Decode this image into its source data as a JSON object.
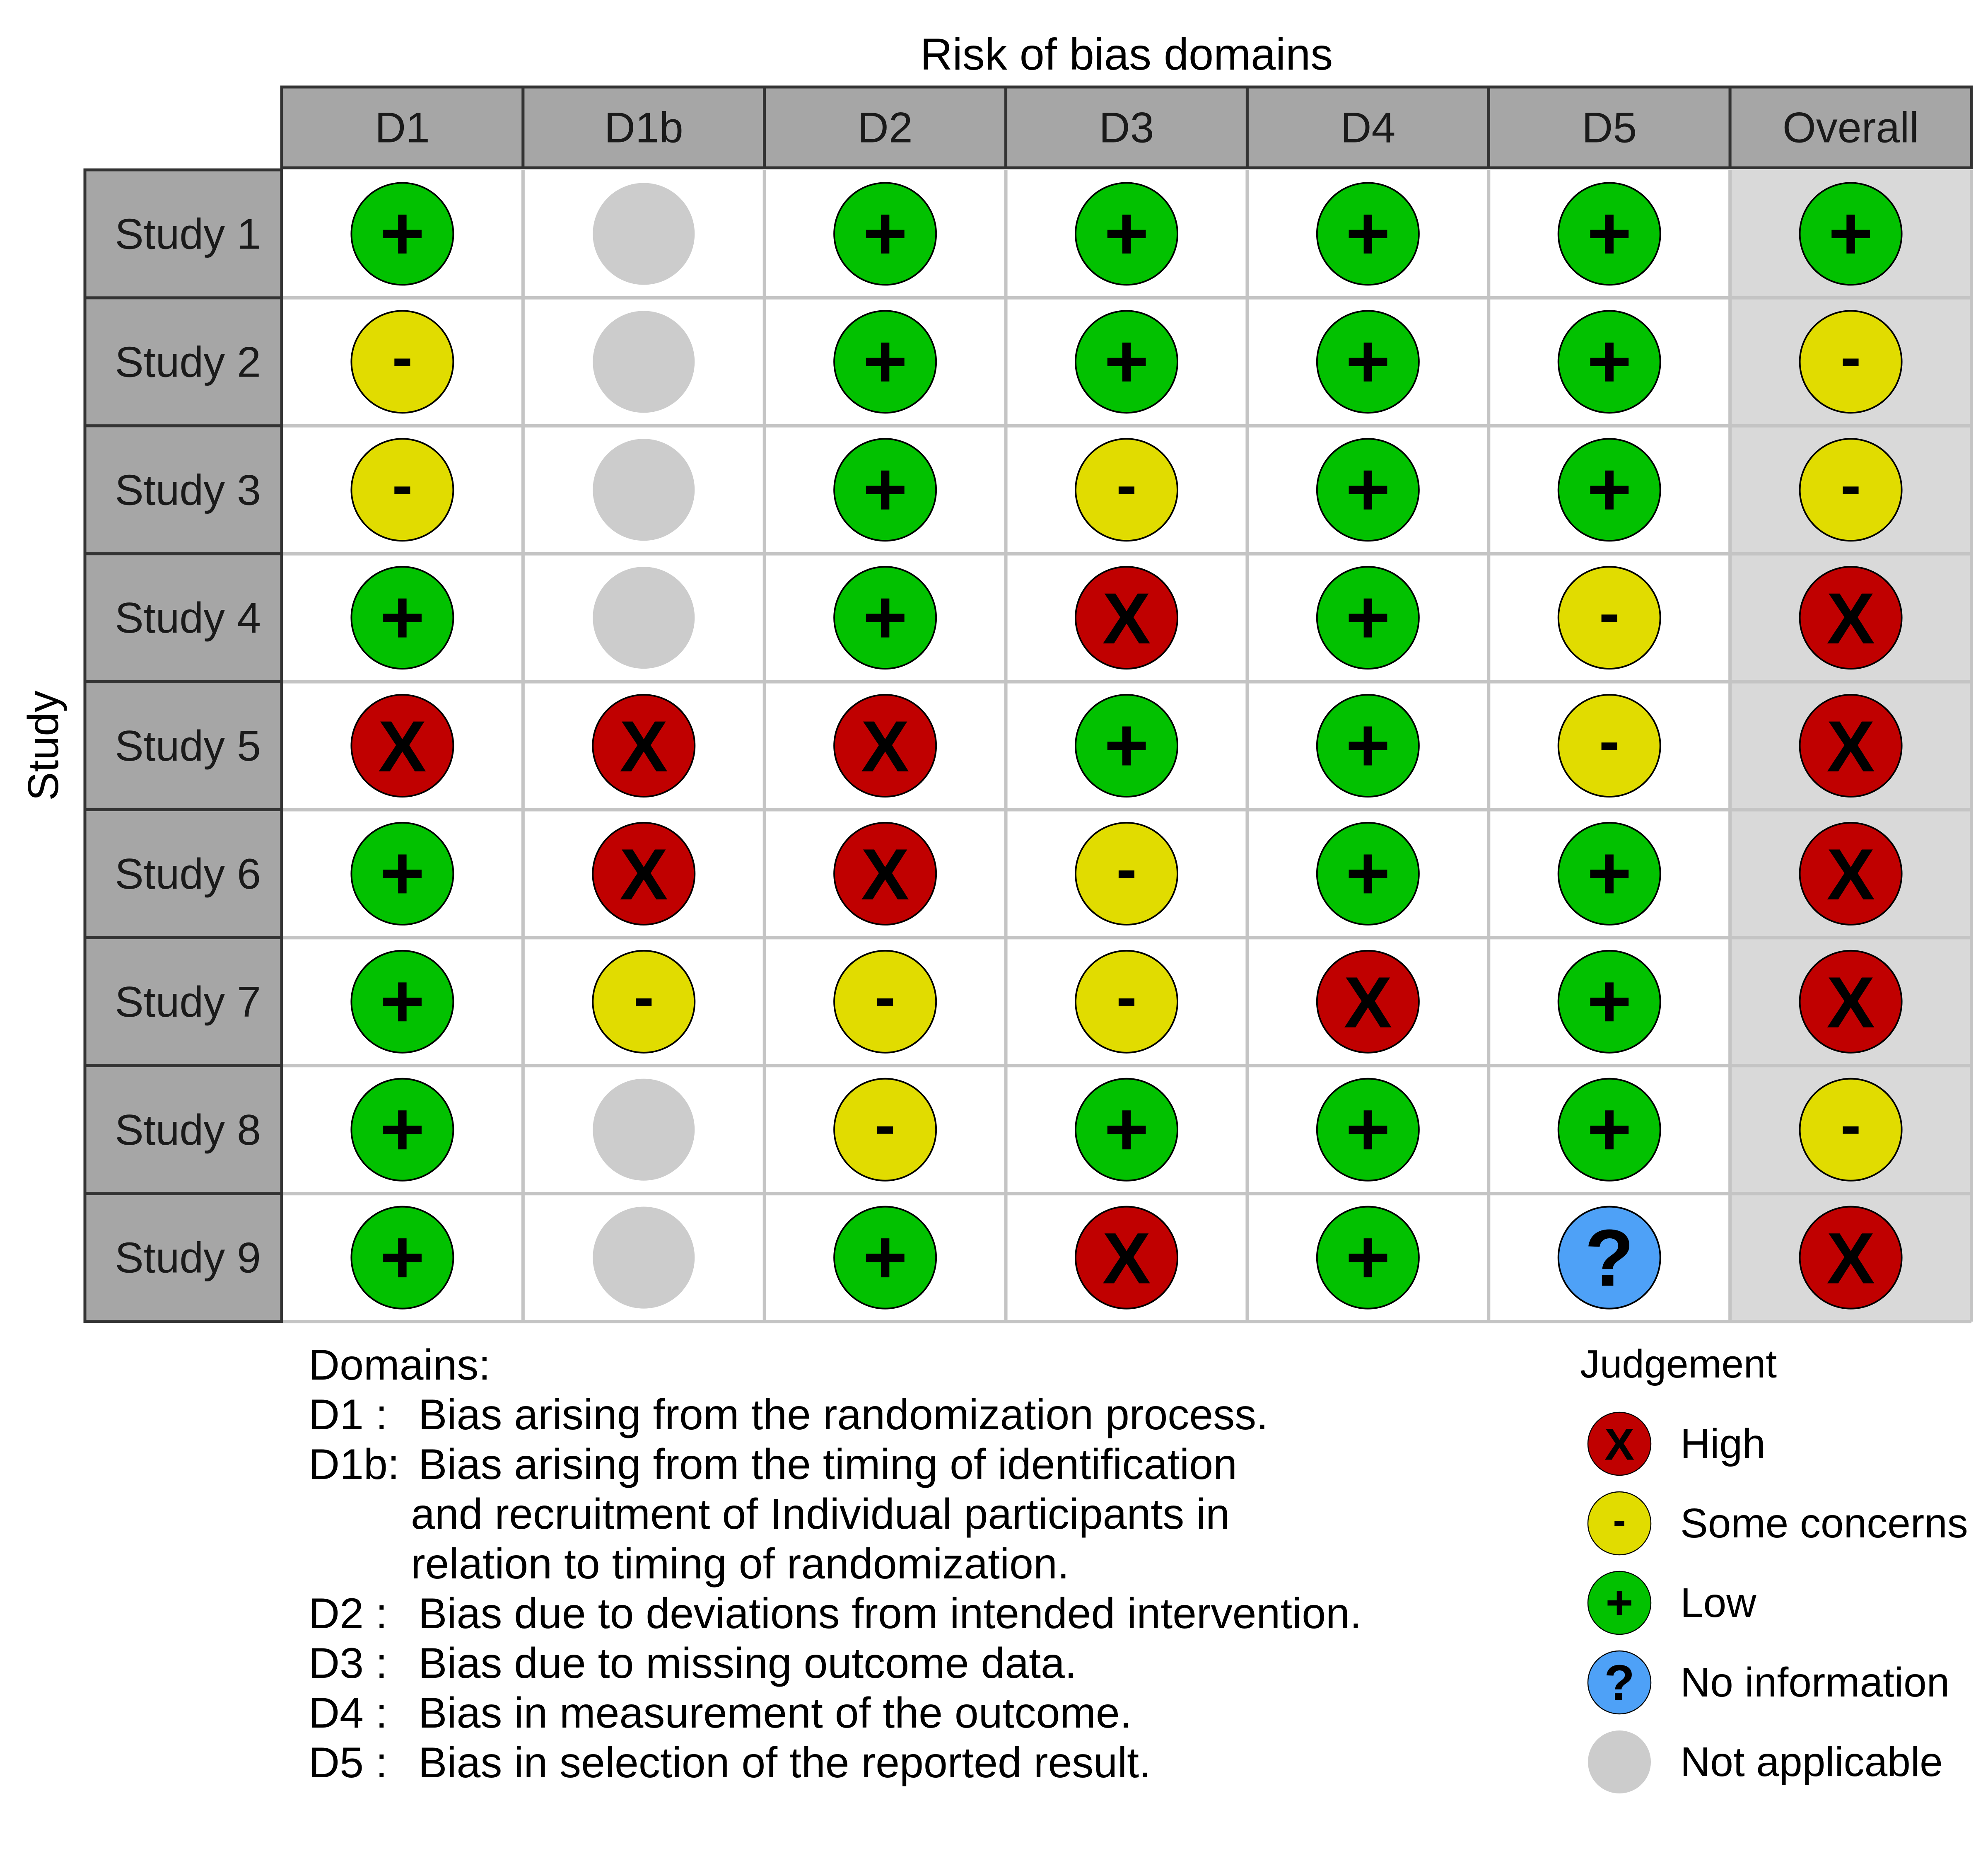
{
  "chart_data": {
    "type": "table",
    "title": "Risk of bias domains",
    "ylabel": "Study",
    "columns": [
      "D1",
      "D1b",
      "D2",
      "D3",
      "D4",
      "D5",
      "Overall"
    ],
    "rows": [
      {
        "study": "Study 1",
        "judgements": [
          "Low",
          "Not applicable",
          "Low",
          "Low",
          "Low",
          "Low",
          "Low"
        ]
      },
      {
        "study": "Study 2",
        "judgements": [
          "Some concerns",
          "Not applicable",
          "Low",
          "Low",
          "Low",
          "Low",
          "Some concerns"
        ]
      },
      {
        "study": "Study 3",
        "judgements": [
          "Some concerns",
          "Not applicable",
          "Low",
          "Some concerns",
          "Low",
          "Low",
          "Some concerns"
        ]
      },
      {
        "study": "Study 4",
        "judgements": [
          "Low",
          "Not applicable",
          "Low",
          "High",
          "Low",
          "Some concerns",
          "High"
        ]
      },
      {
        "study": "Study 5",
        "judgements": [
          "High",
          "High",
          "High",
          "Low",
          "Low",
          "Some concerns",
          "High"
        ]
      },
      {
        "study": "Study 6",
        "judgements": [
          "Low",
          "High",
          "High",
          "Some concerns",
          "Low",
          "Low",
          "High"
        ]
      },
      {
        "study": "Study 7",
        "judgements": [
          "Low",
          "Some concerns",
          "Some concerns",
          "Some concerns",
          "High",
          "Low",
          "High"
        ]
      },
      {
        "study": "Study 8",
        "judgements": [
          "Low",
          "Not applicable",
          "Some concerns",
          "Low",
          "Low",
          "Low",
          "Some concerns"
        ]
      },
      {
        "study": "Study 9",
        "judgements": [
          "Low",
          "Not applicable",
          "Low",
          "High",
          "Low",
          "No information",
          "High"
        ]
      }
    ],
    "legend": {
      "title": "Judgement",
      "placement": "bottom-right",
      "items": [
        {
          "label": "High",
          "symbol": "X",
          "color": "#C00000"
        },
        {
          "label": "Some concerns",
          "symbol": "-",
          "color": "#E1DC00"
        },
        {
          "label": "Low",
          "symbol": "+",
          "color": "#02C100"
        },
        {
          "label": "No information",
          "symbol": "?",
          "color": "#4EA1F7"
        },
        {
          "label": "Not applicable",
          "symbol": "",
          "color": "#CCCCCC"
        }
      ]
    },
    "domains_note": {
      "heading": "Domains:",
      "lines": [
        {
          "code": "D1 :",
          "text": "Bias arising from the randomization process."
        },
        {
          "code": "D1b:",
          "text": "Bias arising from the timing of identification"
        },
        {
          "code": "",
          "text": "and recruitment of Individual participants in"
        },
        {
          "code": "",
          "text": "relation to timing of randomization."
        },
        {
          "code": "D2 :",
          "text": "Bias due to deviations from intended intervention."
        },
        {
          "code": "D3 :",
          "text": "Bias due to missing outcome data."
        },
        {
          "code": "D4 :",
          "text": "Bias in measurement of the outcome."
        },
        {
          "code": "D5 :",
          "text": "Bias in selection of the reported result."
        }
      ]
    }
  },
  "colors": {
    "header_fill": "#A6A6A6",
    "overall_fill": "#D9D9D9",
    "grid_line": "#C4C4C4",
    "outline": "#333333"
  }
}
